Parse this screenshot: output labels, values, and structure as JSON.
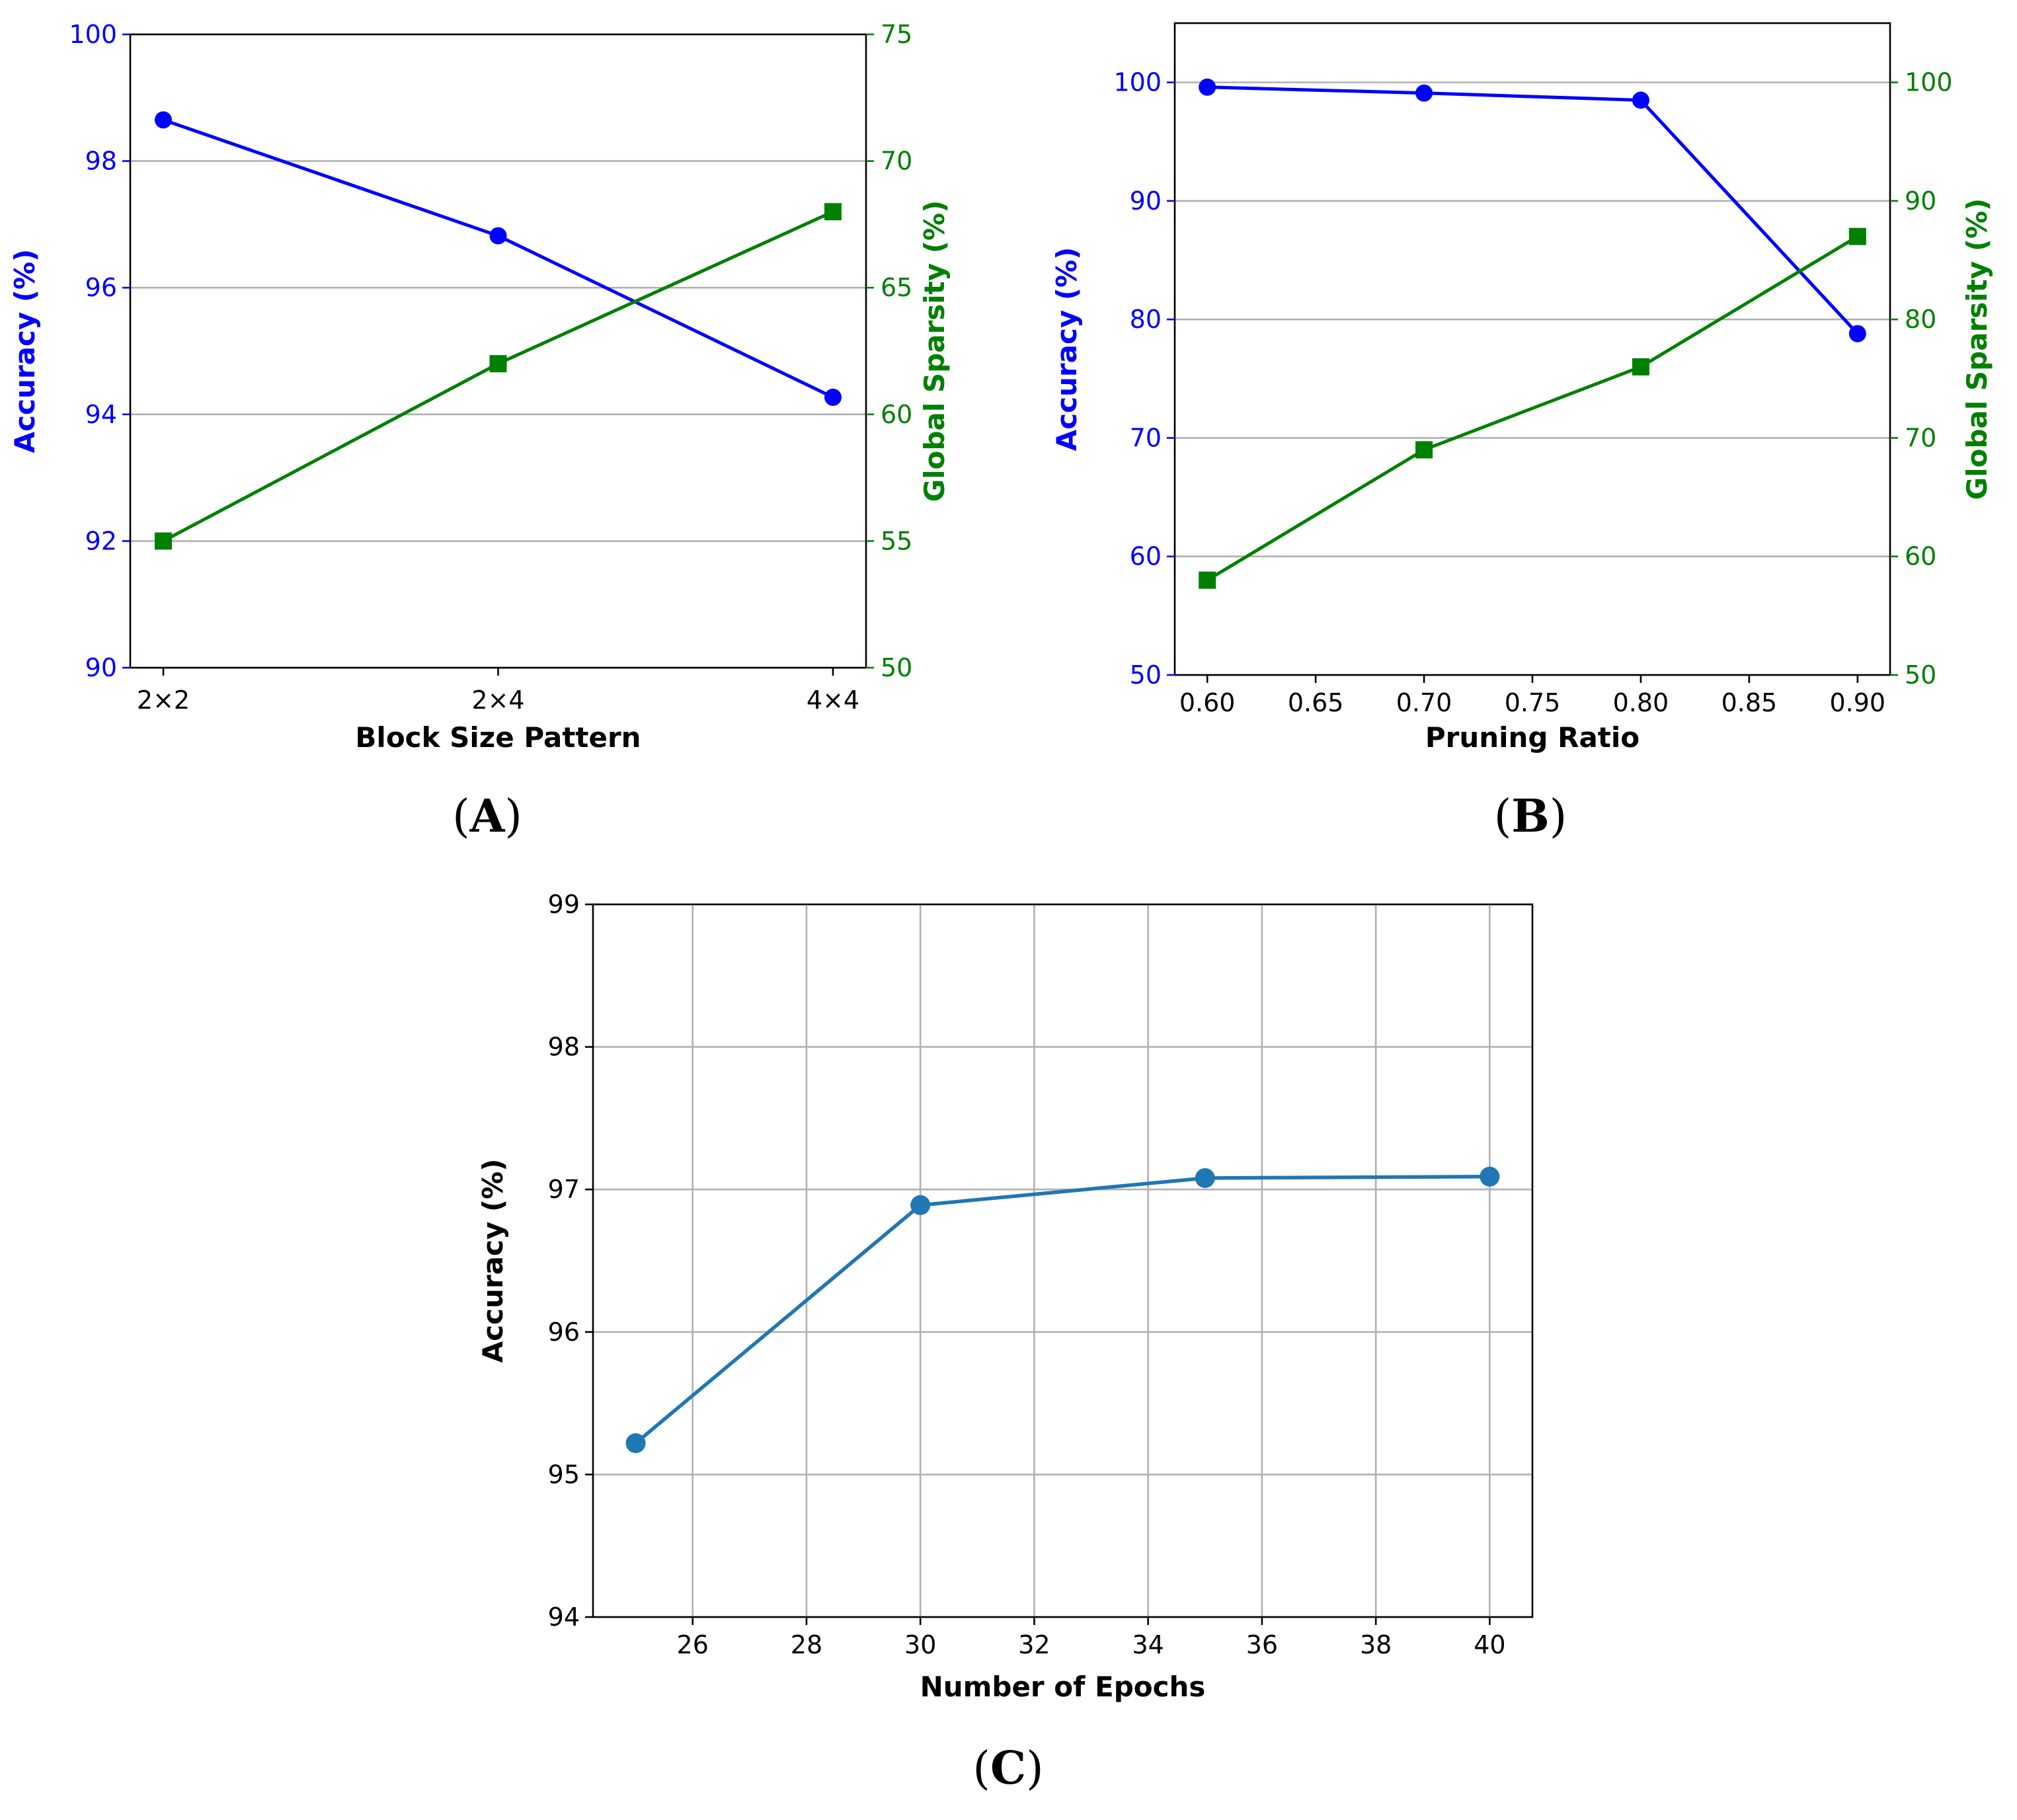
{
  "chart_data": [
    {
      "id": "A",
      "panel_label": "A",
      "type": "line",
      "dual_axis": true,
      "xlabel": "Block Size Pattern",
      "ylabel": "Accuracy (%)",
      "y2label": "Global Sparsity (%)",
      "categories": [
        "2×2",
        "2×4",
        "4×4"
      ],
      "ylim": [
        90,
        100
      ],
      "y2lim": [
        50,
        75
      ],
      "yticks": [
        90,
        92,
        94,
        96,
        98,
        100
      ],
      "y2ticks": [
        50,
        55,
        60,
        65,
        70,
        75
      ],
      "grid": "horizontal",
      "colors": {
        "accuracy": "#0000ff",
        "sparsity": "#008000"
      },
      "series": [
        {
          "name": "Accuracy (%)",
          "axis": "left",
          "marker": "circle",
          "values": [
            98.65,
            96.82,
            94.27
          ]
        },
        {
          "name": "Global Sparsity (%)",
          "axis": "right",
          "marker": "square",
          "values": [
            55.0,
            62.0,
            68.0
          ]
        }
      ]
    },
    {
      "id": "B",
      "panel_label": "B",
      "type": "line",
      "dual_axis": true,
      "xlabel": "Pruning Ratio",
      "ylabel": "Accuracy (%)",
      "y2label": "Global Sparsity (%)",
      "x": [
        0.6,
        0.7,
        0.8,
        0.9
      ],
      "xlim": [
        0.585,
        0.915
      ],
      "xticks": [
        "0.60",
        "0.65",
        "0.70",
        "0.75",
        "0.80",
        "0.85",
        "0.90"
      ],
      "ylim": [
        50,
        105
      ],
      "y2lim": [
        50,
        105
      ],
      "yticks": [
        50,
        60,
        70,
        80,
        90,
        100
      ],
      "y2ticks": [
        50,
        60,
        70,
        80,
        90,
        100
      ],
      "grid": "horizontal",
      "colors": {
        "accuracy": "#0000ff",
        "sparsity": "#008000"
      },
      "series": [
        {
          "name": "Accuracy (%)",
          "axis": "left",
          "marker": "circle",
          "values": [
            99.6,
            99.1,
            98.5,
            78.8
          ]
        },
        {
          "name": "Global Sparsity (%)",
          "axis": "right",
          "marker": "square",
          "values": [
            58.0,
            69.0,
            76.0,
            87.0
          ]
        }
      ]
    },
    {
      "id": "C",
      "panel_label": "C",
      "type": "line",
      "dual_axis": false,
      "xlabel": "Number of Epochs",
      "ylabel": "Accuracy (%)",
      "x": [
        25,
        30,
        35,
        40
      ],
      "xlim": [
        24.25,
        40.75
      ],
      "xticks": [
        "26",
        "28",
        "30",
        "32",
        "34",
        "36",
        "38",
        "40"
      ],
      "ylim": [
        94,
        99
      ],
      "yticks": [
        94,
        95,
        96,
        97,
        98,
        99
      ],
      "grid": "both",
      "colors": {
        "accuracy": "#1f77b4"
      },
      "series": [
        {
          "name": "Accuracy (%)",
          "axis": "left",
          "marker": "circle",
          "values": [
            95.22,
            96.89,
            97.08,
            97.09
          ]
        }
      ]
    }
  ]
}
